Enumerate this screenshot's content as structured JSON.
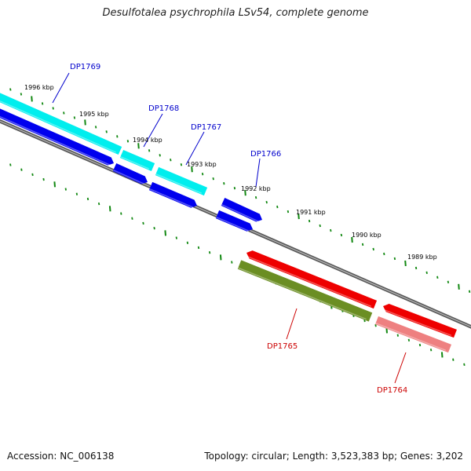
{
  "title": "Desulfotalea psychrophila LSv54, complete genome",
  "footer": {
    "accession": "Accession: NC_006138",
    "topology": "Topology: circular; Length: 3,523,383 bp; Genes: 3,202"
  },
  "colors": {
    "backbone": "#777777",
    "tick": "#118811",
    "cds_forward": "#0000ee",
    "rna_forward": "#00eeee",
    "cds_reverse": "#ee0000",
    "other_reverse": "#6b8e23",
    "rna_reverse": "#ee8080",
    "label_forward": "#0000cc",
    "label_reverse": "#cc0000"
  },
  "scale_labels": [
    "1996 kbp",
    "1995 kbp",
    "1994 kbp",
    "1993 kbp",
    "1992 kbp",
    "1991 kbp",
    "1990 kbp",
    "1989 kbp"
  ],
  "gene_labels": [
    "DP1769",
    "DP1768",
    "DP1767",
    "DP1766",
    "DP1765",
    "DP1764"
  ]
}
